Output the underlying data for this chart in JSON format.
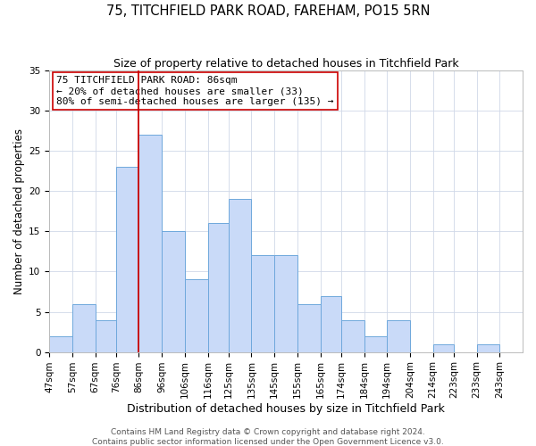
{
  "title": "75, TITCHFIELD PARK ROAD, FAREHAM, PO15 5RN",
  "subtitle": "Size of property relative to detached houses in Titchfield Park",
  "xlabel": "Distribution of detached houses by size in Titchfield Park",
  "ylabel": "Number of detached properties",
  "bin_labels": [
    "47sqm",
    "57sqm",
    "67sqm",
    "76sqm",
    "86sqm",
    "96sqm",
    "106sqm",
    "116sqm",
    "125sqm",
    "135sqm",
    "145sqm",
    "155sqm",
    "165sqm",
    "174sqm",
    "184sqm",
    "194sqm",
    "204sqm",
    "214sqm",
    "223sqm",
    "233sqm",
    "243sqm"
  ],
  "bin_edges": [
    47,
    57,
    67,
    76,
    86,
    96,
    106,
    116,
    125,
    135,
    145,
    155,
    165,
    174,
    184,
    194,
    204,
    214,
    223,
    233,
    243,
    253
  ],
  "bar_heights": [
    2,
    6,
    4,
    23,
    27,
    15,
    9,
    16,
    19,
    12,
    12,
    6,
    7,
    4,
    2,
    4,
    0,
    1,
    0,
    1,
    0
  ],
  "bar_color": "#c9daf8",
  "bar_edge_color": "#6fa8dc",
  "vline_x": 86,
  "vline_color": "#cc0000",
  "annotation_lines": [
    "75 TITCHFIELD PARK ROAD: 86sqm",
    "← 20% of detached houses are smaller (33)",
    "80% of semi-detached houses are larger (135) →"
  ],
  "ylim": [
    0,
    35
  ],
  "yticks": [
    0,
    5,
    10,
    15,
    20,
    25,
    30,
    35
  ],
  "footer_lines": [
    "Contains HM Land Registry data © Crown copyright and database right 2024.",
    "Contains public sector information licensed under the Open Government Licence v3.0."
  ],
  "title_fontsize": 10.5,
  "subtitle_fontsize": 9,
  "xlabel_fontsize": 9,
  "ylabel_fontsize": 8.5,
  "tick_fontsize": 7.5,
  "annotation_fontsize": 8,
  "footer_fontsize": 6.5
}
